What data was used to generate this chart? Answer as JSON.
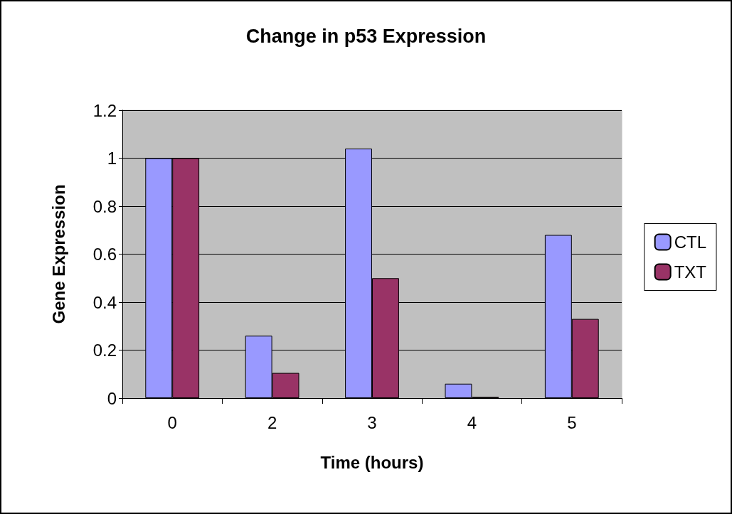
{
  "chart_data": {
    "type": "bar",
    "title": "Change in p53 Expression",
    "xlabel": "Time (hours)",
    "ylabel": "Gene Expression",
    "categories": [
      "0",
      "2",
      "3",
      "4",
      "5"
    ],
    "series": [
      {
        "name": "CTL",
        "color": "#9999ff",
        "values": [
          1,
          0.26,
          1.04,
          0.06,
          0.68
        ]
      },
      {
        "name": "TXT",
        "color": "#993366",
        "values": [
          1,
          0.105,
          0.5,
          0.005,
          0.33
        ]
      }
    ],
    "ylim": [
      0,
      1.2
    ],
    "yticks": [
      0,
      0.2,
      0.4,
      0.6,
      0.8,
      1,
      1.2
    ],
    "grid": "y",
    "legend": "right"
  }
}
